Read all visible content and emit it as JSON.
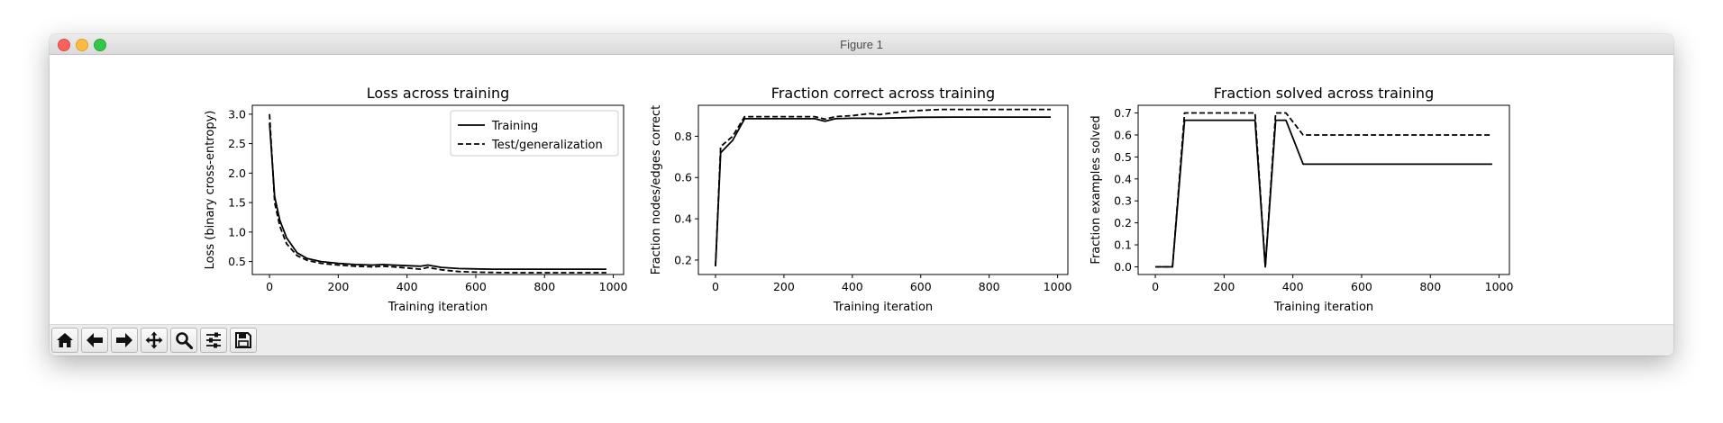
{
  "window": {
    "title": "Figure 1"
  },
  "toolbar": {
    "buttons": [
      {
        "name": "home-button",
        "icon": "home-icon"
      },
      {
        "name": "back-button",
        "icon": "arrow-left-icon"
      },
      {
        "name": "forward-button",
        "icon": "arrow-right-icon"
      },
      {
        "name": "pan-button",
        "icon": "move-icon"
      },
      {
        "name": "zoom-button",
        "icon": "magnifier-icon"
      },
      {
        "name": "configure-subplots-button",
        "icon": "sliders-icon"
      },
      {
        "name": "save-button",
        "icon": "floppy-disk-icon"
      }
    ]
  },
  "chart_data": [
    {
      "type": "line",
      "title": "Loss across training",
      "xlabel": "Training iteration",
      "ylabel": "Loss (binary cross-entropy)",
      "xlim": [
        -50,
        1030
      ],
      "ylim": [
        0.28,
        3.15
      ],
      "xticks": [
        0,
        200,
        400,
        600,
        800,
        1000
      ],
      "yticks": [
        0.5,
        1.0,
        1.5,
        2.0,
        2.5,
        3.0
      ],
      "legend": "top-right",
      "series": [
        {
          "name": "Training",
          "style": "solid",
          "x": [
            0,
            15,
            30,
            50,
            80,
            110,
            150,
            200,
            250,
            300,
            330,
            360,
            400,
            440,
            460,
            500,
            550,
            600,
            650,
            700,
            800,
            900,
            980
          ],
          "y": [
            2.85,
            1.6,
            1.2,
            0.9,
            0.65,
            0.55,
            0.5,
            0.47,
            0.45,
            0.44,
            0.45,
            0.44,
            0.43,
            0.42,
            0.44,
            0.4,
            0.38,
            0.375,
            0.37,
            0.37,
            0.37,
            0.37,
            0.37
          ]
        },
        {
          "name": "Test/generalization",
          "style": "dashed",
          "x": [
            0,
            15,
            30,
            50,
            80,
            110,
            150,
            200,
            250,
            300,
            330,
            360,
            400,
            440,
            460,
            500,
            550,
            600,
            650,
            700,
            800,
            900,
            980
          ],
          "y": [
            3.0,
            1.5,
            1.1,
            0.8,
            0.6,
            0.52,
            0.47,
            0.44,
            0.42,
            0.41,
            0.42,
            0.41,
            0.39,
            0.37,
            0.4,
            0.36,
            0.33,
            0.32,
            0.315,
            0.31,
            0.31,
            0.31,
            0.31
          ]
        }
      ]
    },
    {
      "type": "line",
      "title": "Fraction correct across training",
      "xlabel": "Training iteration",
      "ylabel": "Fraction nodes/edges correct",
      "xlim": [
        -50,
        1030
      ],
      "ylim": [
        0.13,
        0.95
      ],
      "xticks": [
        0,
        200,
        400,
        600,
        800,
        1000
      ],
      "yticks": [
        0.2,
        0.4,
        0.6,
        0.8
      ],
      "series": [
        {
          "name": "",
          "style": "solid",
          "x": [
            0,
            15,
            50,
            85,
            150,
            200,
            250,
            290,
            320,
            350,
            400,
            450,
            480,
            550,
            600,
            700,
            800,
            900,
            980
          ],
          "y": [
            0.17,
            0.72,
            0.78,
            0.885,
            0.885,
            0.885,
            0.885,
            0.885,
            0.873,
            0.885,
            0.887,
            0.887,
            0.887,
            0.89,
            0.892,
            0.893,
            0.893,
            0.893,
            0.893
          ]
        },
        {
          "name": "",
          "style": "dashed",
          "x": [
            0,
            15,
            50,
            85,
            150,
            200,
            250,
            290,
            320,
            350,
            400,
            450,
            480,
            550,
            600,
            660,
            700,
            800,
            900,
            980
          ],
          "y": [
            0.17,
            0.75,
            0.8,
            0.895,
            0.895,
            0.895,
            0.895,
            0.895,
            0.883,
            0.895,
            0.9,
            0.91,
            0.905,
            0.92,
            0.925,
            0.93,
            0.93,
            0.93,
            0.93,
            0.93
          ]
        }
      ]
    },
    {
      "type": "line",
      "title": "Fraction solved across training",
      "xlabel": "Training iteration",
      "ylabel": "Fraction examples solved",
      "xlim": [
        -50,
        1030
      ],
      "ylim": [
        -0.035,
        0.735
      ],
      "xticks": [
        0,
        200,
        400,
        600,
        800,
        1000
      ],
      "yticks": [
        0.0,
        0.1,
        0.2,
        0.3,
        0.4,
        0.5,
        0.6,
        0.7
      ],
      "series": [
        {
          "name": "",
          "style": "solid",
          "x": [
            0,
            50,
            85,
            150,
            200,
            250,
            290,
            320,
            350,
            380,
            430,
            500,
            600,
            700,
            800,
            900,
            980
          ],
          "y": [
            0.0,
            0.0,
            0.667,
            0.667,
            0.667,
            0.667,
            0.667,
            0.0,
            0.667,
            0.667,
            0.467,
            0.467,
            0.467,
            0.467,
            0.467,
            0.467,
            0.467
          ]
        },
        {
          "name": "",
          "style": "dashed",
          "x": [
            0,
            50,
            85,
            150,
            200,
            250,
            290,
            320,
            350,
            380,
            430,
            500,
            600,
            700,
            800,
            900,
            980
          ],
          "y": [
            0.0,
            0.0,
            0.7,
            0.7,
            0.7,
            0.7,
            0.7,
            0.0,
            0.7,
            0.7,
            0.6,
            0.6,
            0.6,
            0.6,
            0.6,
            0.6,
            0.6
          ]
        }
      ]
    }
  ]
}
